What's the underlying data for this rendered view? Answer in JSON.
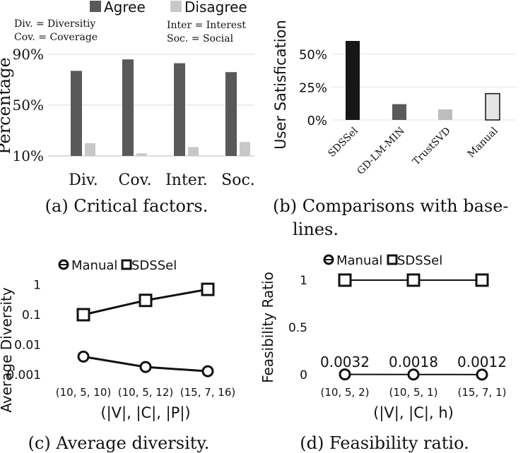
{
  "chart_data": [
    {
      "type": "bar",
      "caption": "(a) Critical factors.",
      "categories": [
        "Div.",
        "Cov.",
        "Inter.",
        "Soc."
      ],
      "series": [
        {
          "name": "Agree",
          "values": [
            77,
            86,
            83,
            76
          ],
          "color": "#595959"
        },
        {
          "name": "Disagree",
          "values": [
            20,
            12,
            17,
            21
          ],
          "color": "#c8c8c8"
        }
      ],
      "ylabel": "Percentage",
      "yticks": [
        "90%",
        "50%",
        "10%"
      ],
      "ylim": [
        10,
        90
      ],
      "notes": [
        "Div. = Diversitiy",
        "Cov. = Coverage",
        "Inter = Interest",
        "Soc. = Social"
      ]
    },
    {
      "type": "bar",
      "caption_line1": "(b) Comparisons with base-",
      "caption_line2": "lines.",
      "categories": [
        "SDSSel",
        "GD-LM-MIN",
        "TrustSVD",
        "Manual"
      ],
      "values": [
        60,
        12,
        8,
        20
      ],
      "colors": [
        "#161616",
        "#5a5a5a",
        "#bdbdbd",
        "#e4e4e4"
      ],
      "ylabel": "User Satisfication",
      "yticks": [
        "50%",
        "25%",
        "0%"
      ],
      "ylim": [
        0,
        60
      ]
    },
    {
      "type": "line",
      "caption": "(c) Average diversity.",
      "categories": [
        "(10, 5, 10)",
        "(10, 5, 12)",
        "(15, 7, 16)"
      ],
      "series": [
        {
          "name": "Manual",
          "values": [
            0.004,
            0.0018,
            0.0013
          ],
          "marker": "circle"
        },
        {
          "name": "SDSSel",
          "values": [
            0.1,
            0.3,
            0.7
          ],
          "marker": "square"
        }
      ],
      "xlabel": "(|V|, |C|, |P|)",
      "ylabel": "Average Diversity",
      "yscale": "log",
      "yticks": [
        "1",
        "0.1",
        "0.01",
        "0.001"
      ]
    },
    {
      "type": "line",
      "caption": "(d) Feasibility ratio.",
      "categories": [
        "(10, 5, 2)",
        "(10, 5, 1)",
        "(15, 7, 1)"
      ],
      "series": [
        {
          "name": "Manual",
          "values": [
            0.0032,
            0.0018,
            0.0012
          ],
          "marker": "circle"
        },
        {
          "name": "SDSSel",
          "values": [
            1,
            1,
            1
          ],
          "marker": "square"
        }
      ],
      "data_labels": [
        "0.0032",
        "0.0018",
        "0.0012"
      ],
      "xlabel": "(|V|, |C|, h)",
      "ylabel": "Feasibility Ratio",
      "yticks": [
        "1",
        "0.5",
        "0"
      ],
      "ylim": [
        0,
        1
      ]
    }
  ]
}
